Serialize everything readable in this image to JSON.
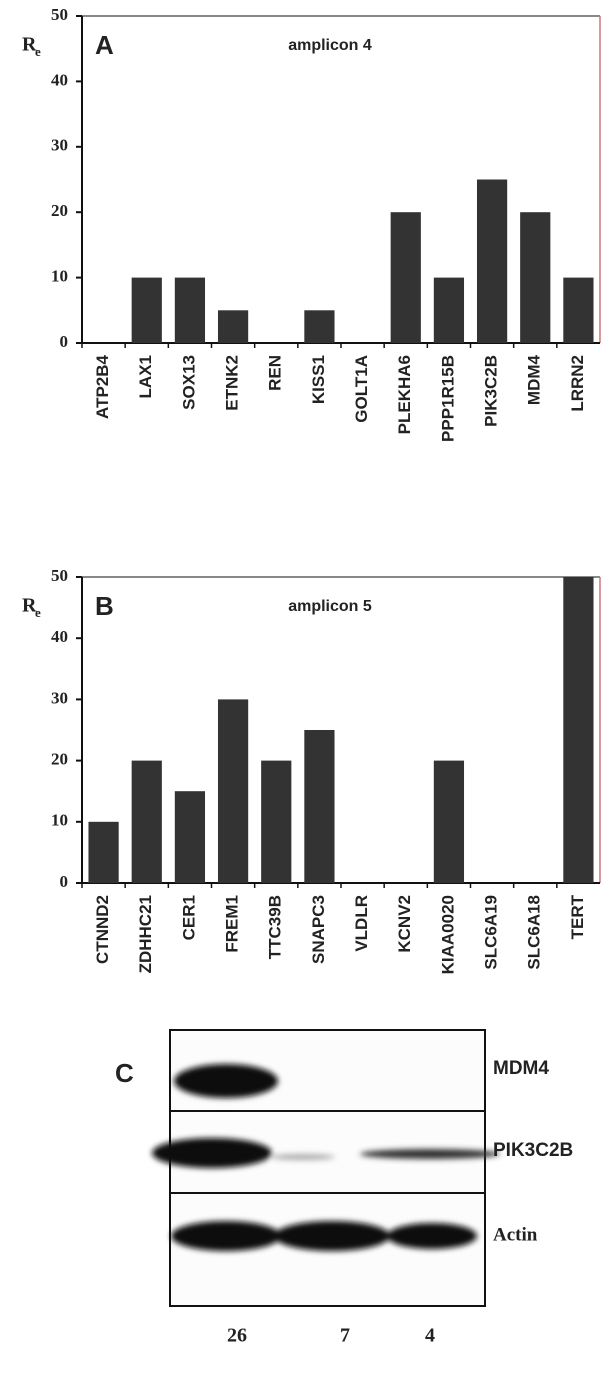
{
  "chart_data": [
    {
      "type": "bar",
      "panel": "A",
      "title": "amplicon 4",
      "ylabel": "R",
      "ylabel_sub": "e",
      "categories": [
        "ATP2B4",
        "LAX1",
        "SOX13",
        "ETNK2",
        "REN",
        "KISS1",
        "GOLT1A",
        "PLEKHA6",
        "PPP1R15B",
        "PIK3C2B",
        "MDM4",
        "LRRN2"
      ],
      "values": [
        0,
        10,
        10,
        5,
        0,
        5,
        0,
        20,
        10,
        25,
        20,
        10
      ],
      "color": "#333333",
      "ylim": [
        0,
        50
      ],
      "yticks": [
        0,
        10,
        20,
        30,
        40,
        50
      ]
    },
    {
      "type": "bar",
      "panel": "B",
      "title": "amplicon 5",
      "ylabel": "R",
      "ylabel_sub": "e",
      "categories": [
        "CTNND2",
        "ZDHHC21",
        "CER1",
        "FREM1",
        "TTC39B",
        "SNAPC3",
        "VLDLR",
        "KCNV2",
        "KIAA0020",
        "SLC6A19",
        "SLC6A18",
        "TERT"
      ],
      "values": [
        10,
        20,
        15,
        30,
        20,
        25,
        0,
        0,
        20,
        0,
        0,
        50
      ],
      "color": "#333333",
      "ylim": [
        0,
        50
      ],
      "yticks": [
        0,
        10,
        20,
        30,
        40,
        50
      ]
    }
  ],
  "blot": {
    "panel": "C",
    "rows": [
      "MDM4",
      "PIK3C2B",
      "Actin"
    ],
    "lanes": [
      26,
      7,
      4
    ]
  }
}
